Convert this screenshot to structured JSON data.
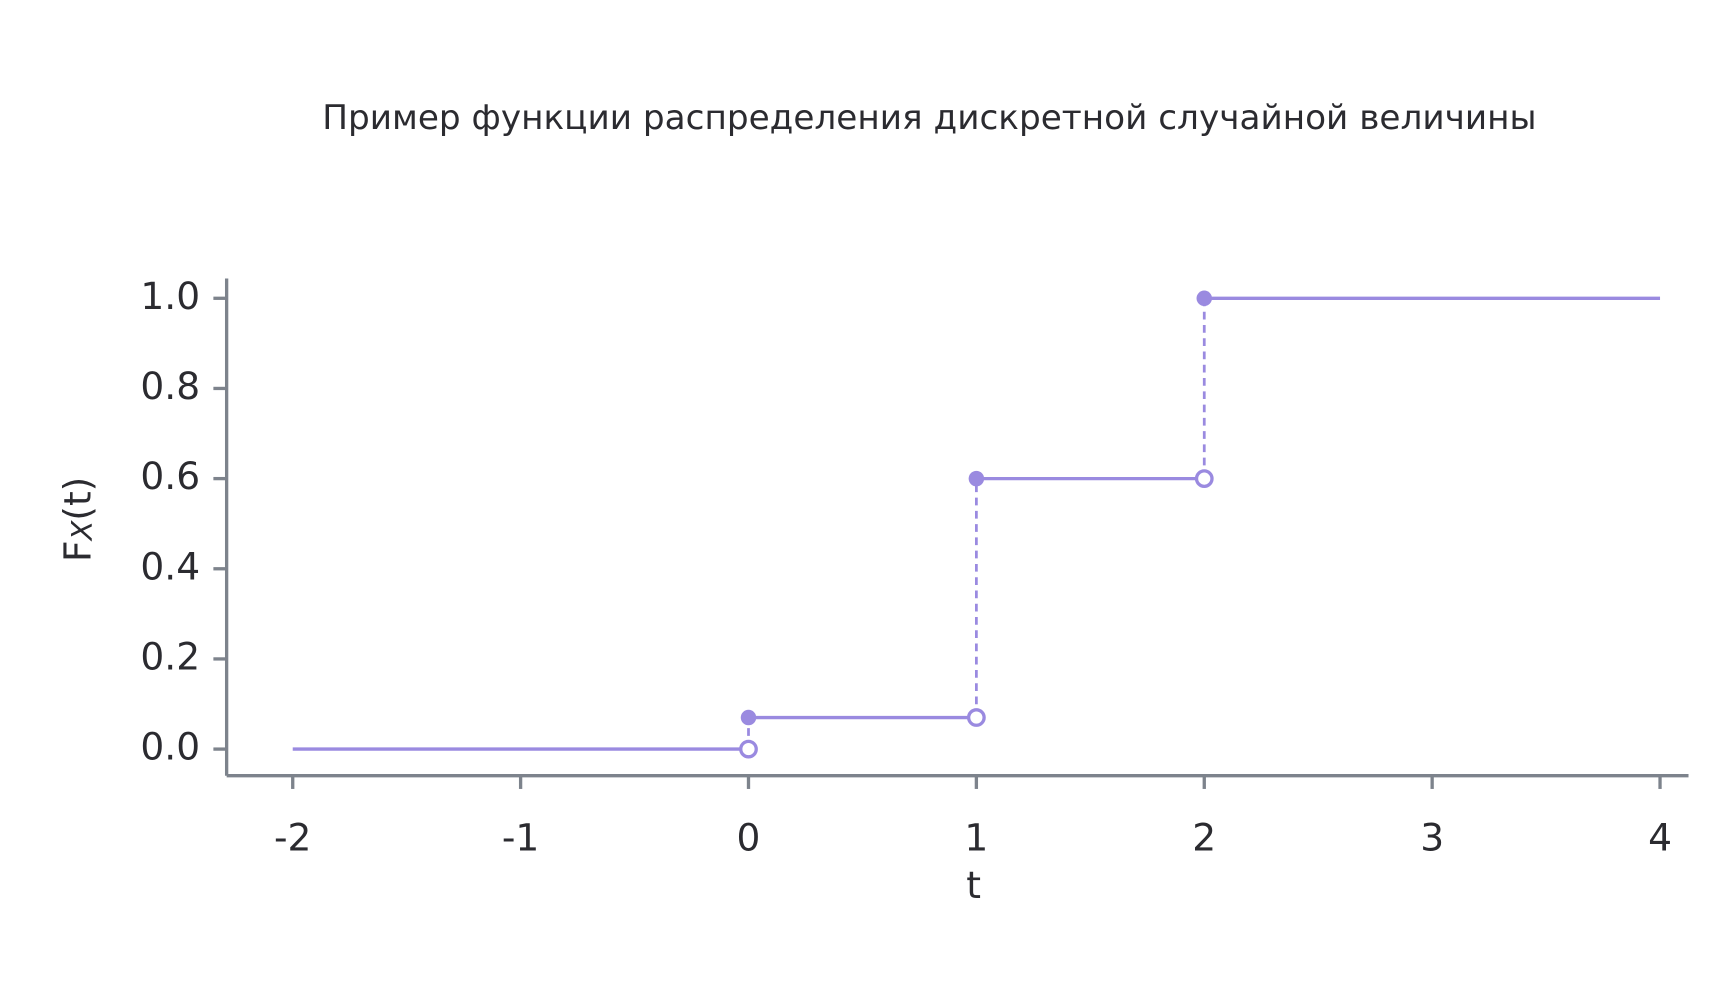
{
  "chart_data": {
    "type": "step",
    "title": "Пример функции распределения дискретной случайной величины",
    "xlabel": "t",
    "ylabel": {
      "main": "F",
      "sub": "X",
      "tail": "(t)"
    },
    "x": [
      -2,
      0,
      1,
      2,
      4
    ],
    "values": [
      0,
      0.07,
      0.6,
      1,
      1
    ],
    "color": "#9a8ae0",
    "xlim": [
      -2.29,
      4.125
    ],
    "ylim": [
      -0.059,
      1.044
    ],
    "xticks": [
      -2,
      -1,
      0,
      1,
      2,
      3,
      4
    ],
    "yticks": [
      {
        "value": 0,
        "label": "0.0"
      },
      0.2,
      0.4,
      0.6,
      0.8,
      {
        "value": 1,
        "label": "1.0"
      }
    ]
  }
}
